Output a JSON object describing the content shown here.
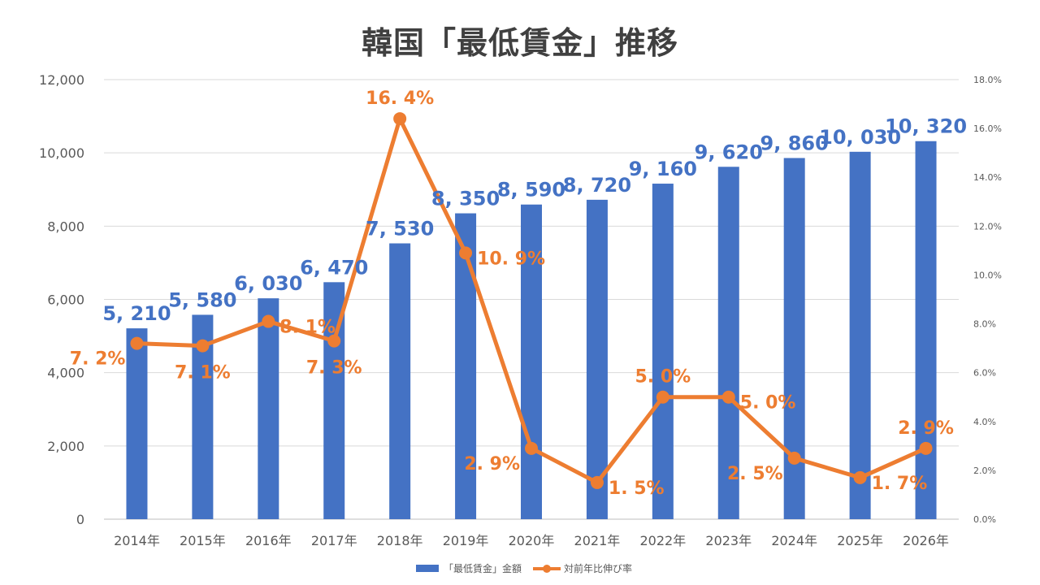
{
  "chart_data": {
    "type": "bar",
    "title": "韓国「最低賃金」推移",
    "categories": [
      "2014年",
      "2015年",
      "2016年",
      "2017年",
      "2018年",
      "2019年",
      "2020年",
      "2021年",
      "2022年",
      "2023年",
      "2024年",
      "2025年",
      "2026年"
    ],
    "series": [
      {
        "name": "「最低賃金」金額",
        "type": "bar",
        "axis": "left",
        "color": "#4472C4",
        "values": [
          5210,
          5580,
          6030,
          6470,
          7530,
          8350,
          8590,
          8720,
          9160,
          9620,
          9860,
          10030,
          10320
        ],
        "labels": [
          "5, 210",
          "5, 580",
          "6, 030",
          "6, 470",
          "7, 530",
          "8, 350",
          "8, 590",
          "8, 720",
          "9, 160",
          "9, 620",
          "9, 860",
          "10, 030",
          "10, 320"
        ]
      },
      {
        "name": "対前年比伸び率",
        "type": "line",
        "axis": "right",
        "color": "#ED7D31",
        "values": [
          7.2,
          7.1,
          8.1,
          7.3,
          16.4,
          10.9,
          2.9,
          1.5,
          5.0,
          5.0,
          2.5,
          1.7,
          2.9
        ],
        "labels": [
          "7. 2%",
          "7. 1%",
          "8. 1%",
          "7. 3%",
          "16. 4%",
          "10. 9%",
          "2. 9%",
          "1. 5%",
          "5. 0%",
          "5. 0%",
          "2. 5%",
          "1. 7%",
          "2. 9%"
        ]
      }
    ],
    "y_left": {
      "min": 0,
      "max": 12000,
      "ticks": [
        "0",
        "2,000",
        "4,000",
        "6,000",
        "8,000",
        "10,000",
        "12,000"
      ]
    },
    "y_right": {
      "min": 0,
      "max": 18,
      "ticks": [
        "0.0%",
        "2.0%",
        "4.0%",
        "6.0%",
        "8.0%",
        "10.0%",
        "12.0%",
        "14.0%",
        "16.0%",
        "18.0%"
      ]
    },
    "grid": true,
    "legend": "bottom"
  }
}
